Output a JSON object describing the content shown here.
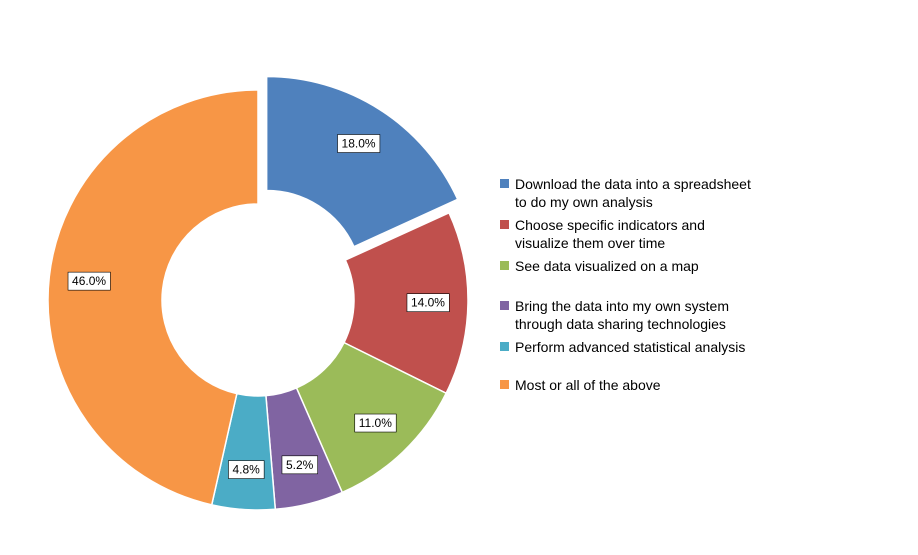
{
  "chart_data": {
    "type": "pie",
    "variant": "donut",
    "exploded_slice": "Download the data into a spreadsheet to do my own analysis",
    "legend_position": "right",
    "slices": [
      {
        "label": "Download the data into a spreadsheet to do my own analysis",
        "value": 18.0,
        "display": "18.0%",
        "color": "#4F81BD"
      },
      {
        "label": "Choose specific indicators and visualize them over time",
        "value": 14.0,
        "display": "14.0%",
        "color": "#C0504D"
      },
      {
        "label": "See data visualized on a map",
        "value": 11.0,
        "display": "11.0%",
        "color": "#9BBB59"
      },
      {
        "label": "Bring the data into my own system through data sharing technologies",
        "value": 5.2,
        "display": "5.2%",
        "color": "#8064A2"
      },
      {
        "label": "Perform advanced statistical analysis",
        "value": 4.8,
        "display": "4.8%",
        "color": "#4BACC6"
      },
      {
        "label": "Most or all of the above",
        "value": 46.0,
        "display": "46.0%",
        "color": "#F79646"
      }
    ],
    "legend_lines": [
      [
        "Download the data into a spreadsheet",
        "to do my own analysis"
      ],
      [
        "Choose specific indicators and",
        "visualize them over time"
      ],
      [
        "See data visualized on a map"
      ],
      [
        "Bring the data into my own system",
        "through data sharing technologies"
      ],
      [
        "Perform advanced statistical analysis"
      ],
      [
        "Most or all of the above"
      ]
    ]
  }
}
